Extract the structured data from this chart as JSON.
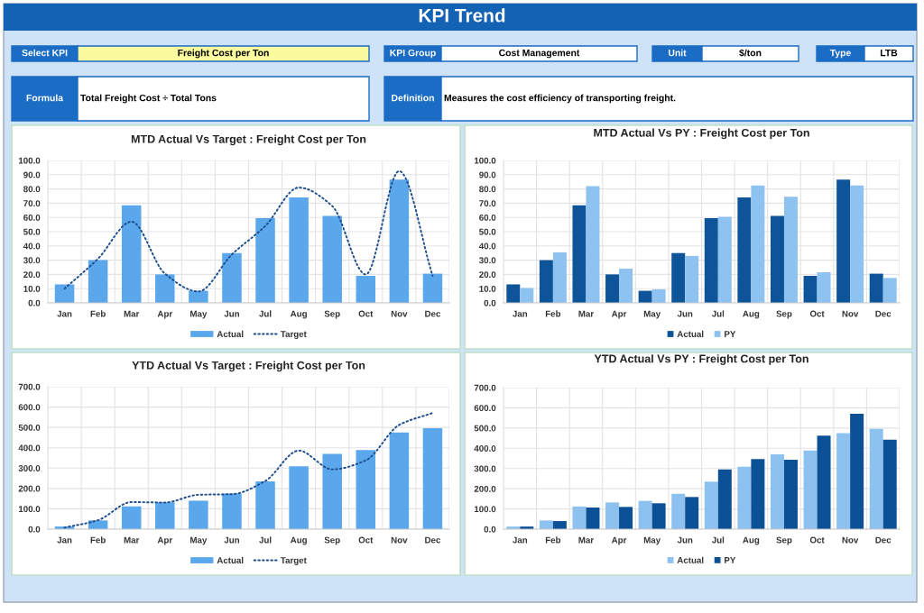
{
  "chart_data": [
    {
      "type": "other",
      "title": "KPI Trend",
      "annotations": [
        "Select KPI",
        "Freight Cost per Ton",
        "KPI Group",
        "Cost Management",
        "Unit",
        "$/ton",
        "Type",
        "LTB",
        "Formula",
        "Total Freight Cost ÷ Total Tons",
        "Definition",
        "Measures the cost efficiency of transporting freight."
      ]
    },
    {
      "type": "bar",
      "title": "MTD Actual Vs Target : Freight Cost per Ton",
      "categories": [
        "Jan",
        "Feb",
        "Mar",
        "Apr",
        "May",
        "Jun",
        "Jul",
        "Aug",
        "Sep",
        "Oct",
        "Nov",
        "Dec"
      ],
      "series": [
        {
          "name": "Actual",
          "color": "#5aa7ec",
          "values": [
            13,
            30,
            68.5,
            20,
            8.5,
            35,
            59.5,
            74,
            61,
            19,
            86.5,
            20.5
          ]
        },
        {
          "name": "Target",
          "type": "line",
          "color": "#1f4e8c",
          "values": [
            10,
            31,
            57,
            20.5,
            8,
            34,
            54,
            81,
            68,
            20,
            92.5,
            19
          ]
        }
      ],
      "ylim": [
        0,
        100
      ],
      "yticks": [
        {
          "value": 0,
          "label": "0.0"
        },
        {
          "value": 10,
          "label": "10.0"
        },
        {
          "value": 20,
          "label": "20.0"
        },
        {
          "value": 30,
          "label": "30.0"
        },
        {
          "value": 40,
          "label": "40.0"
        },
        {
          "value": 50,
          "label": "50.0"
        },
        {
          "value": 60,
          "label": "60.0"
        },
        {
          "value": 70,
          "label": "70.0"
        },
        {
          "value": 80,
          "label": "80.0"
        },
        {
          "value": 90,
          "label": "90.0"
        },
        {
          "value": 100,
          "label": "100.0"
        }
      ],
      "grid": true,
      "legend": "bottom",
      "line_style": "dotted"
    },
    {
      "type": "bar",
      "title": "MTD Actual Vs PY : Freight Cost per Ton",
      "categories": [
        "Jan",
        "Feb",
        "Mar",
        "Apr",
        "May",
        "Jun",
        "Jul",
        "Aug",
        "Sep",
        "Oct",
        "Nov",
        "Dec"
      ],
      "series": [
        {
          "name": "Actual",
          "color": "#0e5499",
          "values": [
            13,
            30,
            68.5,
            20,
            8.5,
            35,
            59.5,
            74,
            61,
            19,
            86.5,
            20.5
          ]
        },
        {
          "name": "PY",
          "color": "#8ec2f0",
          "values": [
            10.5,
            35.5,
            82,
            24,
            9.5,
            33,
            60.5,
            82.5,
            74.5,
            21.5,
            82.5,
            17.5
          ]
        }
      ],
      "ylim": [
        0,
        100
      ],
      "yticks": [
        {
          "value": 0,
          "label": "0.0"
        },
        {
          "value": 10,
          "label": "10.0"
        },
        {
          "value": 20,
          "label": "20.0"
        },
        {
          "value": 30,
          "label": "30.0"
        },
        {
          "value": 40,
          "label": "40.0"
        },
        {
          "value": 50,
          "label": "50.0"
        },
        {
          "value": 60,
          "label": "60.0"
        },
        {
          "value": 70,
          "label": "70.0"
        },
        {
          "value": 80,
          "label": "80.0"
        },
        {
          "value": 90,
          "label": "90.0"
        },
        {
          "value": 100,
          "label": "100.0"
        }
      ],
      "grid": true,
      "legend": "bottom"
    },
    {
      "type": "bar",
      "title": "YTD Actual Vs Target : Freight Cost per Ton",
      "categories": [
        "Jan",
        "Feb",
        "Mar",
        "Apr",
        "May",
        "Jun",
        "Jul",
        "Aug",
        "Sep",
        "Oct",
        "Nov",
        "Dec"
      ],
      "series": [
        {
          "name": "Actual",
          "color": "#5aa7ec",
          "values": [
            13,
            43,
            112,
            132,
            140,
            175,
            235,
            309,
            370,
            389,
            475,
            496
          ]
        },
        {
          "name": "Target",
          "type": "line",
          "color": "#1f4e8c",
          "values": [
            8,
            44,
            133,
            131,
            169,
            172,
            237,
            386,
            294,
            338,
            512,
            571
          ]
        }
      ],
      "ylim": [
        0,
        700
      ],
      "yticks": [
        {
          "value": 0,
          "label": "0.0"
        },
        {
          "value": 100,
          "label": "100.0"
        },
        {
          "value": 200,
          "label": "200.0"
        },
        {
          "value": 300,
          "label": "300.0"
        },
        {
          "value": 400,
          "label": "400.0"
        },
        {
          "value": 500,
          "label": "500.0"
        },
        {
          "value": 600,
          "label": "600.0"
        },
        {
          "value": 700,
          "label": "700.0"
        }
      ],
      "grid": true,
      "legend": "bottom",
      "line_style": "dotted"
    },
    {
      "type": "bar",
      "title": "YTD Actual Vs PY : Freight Cost per Ton",
      "categories": [
        "Jan",
        "Feb",
        "Mar",
        "Apr",
        "May",
        "Jun",
        "Jul",
        "Aug",
        "Sep",
        "Oct",
        "Nov",
        "Dec"
      ],
      "series": [
        {
          "name": "Actual",
          "color": "#8dc1ef",
          "values": [
            13,
            43,
            112,
            132,
            140,
            175,
            235,
            309,
            370,
            389,
            475,
            496
          ]
        },
        {
          "name": "PY",
          "color": "#0c5196",
          "values": [
            13,
            40,
            107,
            110,
            128,
            159,
            295,
            347,
            343,
            463,
            571,
            442
          ]
        }
      ],
      "ylim": [
        0,
        700
      ],
      "yticks": [
        {
          "value": 0,
          "label": "0.0"
        },
        {
          "value": 100,
          "label": "100.0"
        },
        {
          "value": 200,
          "label": "200.0"
        },
        {
          "value": 300,
          "label": "300.0"
        },
        {
          "value": 400,
          "label": "400.0"
        },
        {
          "value": 500,
          "label": "500.0"
        },
        {
          "value": 600,
          "label": "600.0"
        },
        {
          "value": 700,
          "label": "700.0"
        }
      ],
      "grid": true,
      "legend": "bottom"
    }
  ]
}
